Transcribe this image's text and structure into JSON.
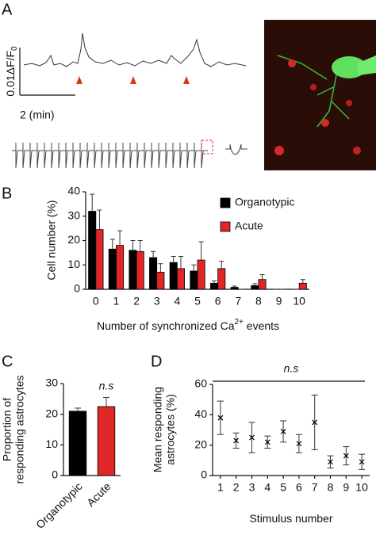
{
  "panel_labels": [
    "A",
    "B",
    "C",
    "D"
  ],
  "panel_a": {
    "scale_y": "0.01ΔF/F",
    "scale_y_sub": "0",
    "scale_x": "2 (min)"
  },
  "chart_data": [
    {
      "type": "bar",
      "ylabel": "Cell number (%)",
      "xlabel": "Number of synchronized Ca",
      "xlabel_sup": "2+",
      "xlabel_end": " events",
      "categories": [
        "0",
        "1",
        "2",
        "3",
        "4",
        "5",
        "6",
        "7",
        "8",
        "9",
        "10"
      ],
      "series": [
        {
          "name": "Organotypic",
          "color": "#000000",
          "values": [
            32,
            16.5,
            16,
            13,
            11,
            7.5,
            2.5,
            0.8,
            1.5,
            0,
            0
          ],
          "errors": [
            7,
            4,
            4,
            2.5,
            2.5,
            2.5,
            1,
            0.5,
            0.8,
            0,
            0
          ]
        },
        {
          "name": "Acute",
          "color": "#e02626",
          "values": [
            24.5,
            18,
            15.5,
            7,
            8.5,
            12,
            8.5,
            0,
            4,
            0,
            2.5
          ],
          "errors": [
            8,
            6,
            4.5,
            3.5,
            5,
            7.5,
            3,
            0,
            2,
            0,
            1.5
          ]
        }
      ],
      "ylim": [
        0,
        40
      ],
      "yticks": [
        0,
        10,
        20,
        30,
        40
      ],
      "legend": "top-right"
    },
    {
      "type": "bar",
      "ylabel": [
        "Proportion of",
        "responding astrocytes"
      ],
      "categories": [
        "Organotypic",
        "Acute"
      ],
      "values": [
        21,
        22.5
      ],
      "errors": [
        1,
        3
      ],
      "colors": [
        "#000000",
        "#e02626"
      ],
      "annotation": "n.s",
      "ylim": [
        0,
        30
      ],
      "yticks": [
        0,
        10,
        20,
        30
      ]
    },
    {
      "type": "errorbar",
      "ylabel": [
        "Mean responding",
        "astrocytes (%)"
      ],
      "xlabel": "Stimulus number",
      "categories": [
        "1",
        "2",
        "3",
        "4",
        "5",
        "6",
        "7",
        "8",
        "9",
        "10"
      ],
      "values": [
        38,
        23,
        25,
        22,
        29,
        21,
        35,
        9,
        13,
        9
      ],
      "errors": [
        11,
        5,
        10,
        4,
        7,
        6,
        18,
        4,
        6,
        5
      ],
      "annotation": "n.s",
      "ylim": [
        0,
        60
      ],
      "yticks": [
        0,
        20,
        40,
        60
      ]
    }
  ]
}
